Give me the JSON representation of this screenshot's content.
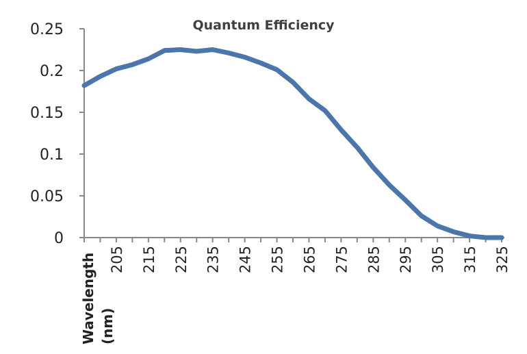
{
  "chart_data": {
    "type": "line",
    "title": "Quantum Efficiency",
    "xlabel": "Wavelength (nm)",
    "xlabel_lines": [
      "Wavelength",
      "(nm)"
    ],
    "ylabel": "",
    "x": [
      195,
      200,
      205,
      210,
      215,
      220,
      225,
      230,
      235,
      240,
      245,
      250,
      255,
      260,
      265,
      270,
      275,
      280,
      285,
      290,
      295,
      300,
      305,
      310,
      315,
      320,
      325
    ],
    "xtick_labels": [
      "205",
      "215",
      "225",
      "235",
      "245",
      "255",
      "265",
      "275",
      "285",
      "295",
      "305",
      "315",
      "325"
    ],
    "series": [
      {
        "name": "Quantum Efficiency",
        "color": "#4a76ac",
        "values": [
          0.182,
          0.193,
          0.202,
          0.207,
          0.214,
          0.224,
          0.225,
          0.223,
          0.225,
          0.221,
          0.216,
          0.209,
          0.201,
          0.186,
          0.166,
          0.152,
          0.129,
          0.108,
          0.084,
          0.063,
          0.045,
          0.026,
          0.014,
          0.007,
          0.002,
          0.0,
          0.0
        ]
      }
    ],
    "ylim": [
      0,
      0.25
    ],
    "yticks": [
      "0",
      "0.05",
      "0.1",
      "0.15",
      "0.2",
      "0.25"
    ],
    "grid": false,
    "legend": "none"
  }
}
